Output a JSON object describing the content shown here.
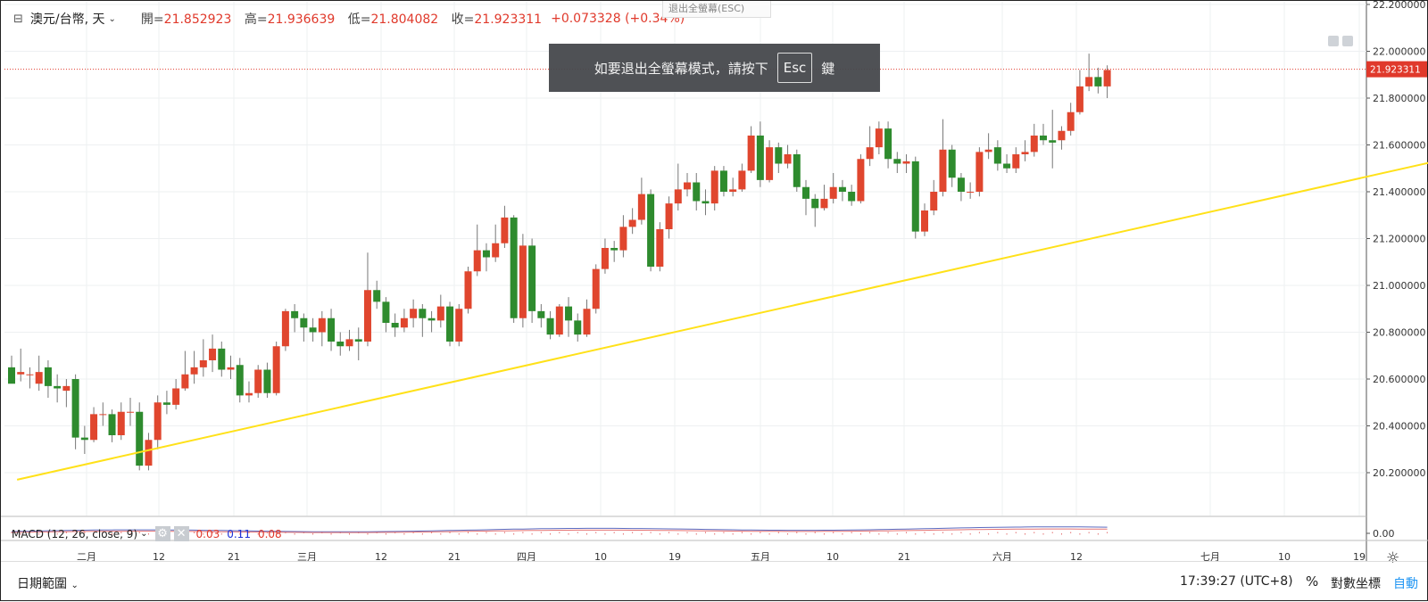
{
  "header": {
    "symbol": "澳元/台幣, 天",
    "open_label": "開=",
    "open": "21.852923",
    "high_label": "高=",
    "high": "21.936639",
    "low_label": "低=",
    "low": "21.804082",
    "close_label": "收=",
    "close": "21.923311",
    "change": "+0.073328 (+0.34%)"
  },
  "exit_fullscreen_label": "退出全螢幕(ESC)",
  "toast": {
    "text_before": "如要退出全螢幕模式，請按下",
    "key": "Esc",
    "text_after": "鍵"
  },
  "macd": {
    "label": "MACD (12, 26, close, 9)",
    "v1": "0.03",
    "v2": "0.11",
    "v3": "0.08",
    "axis_label": "0.00"
  },
  "price_axis": [
    "22.200000",
    "22.000000",
    "21.800000",
    "21.600000",
    "21.400000",
    "21.200000",
    "21.000000",
    "20.800000",
    "20.600000",
    "20.400000",
    "20.200000"
  ],
  "last_price_tag": "21.923311",
  "time_axis": [
    "二月",
    "12",
    "21",
    "三月",
    "12",
    "21",
    "四月",
    "10",
    "19",
    "五月",
    "10",
    "21",
    "六月",
    "12",
    "七月",
    "10",
    "19"
  ],
  "bottom": {
    "date_range": "日期範圍",
    "clock": "17:39:27 (UTC+8)",
    "pct": "%",
    "log": "對數坐標",
    "auto": "自動"
  },
  "colors": {
    "up": "#e0462e",
    "down": "#2e8b2e",
    "trendline": "#ffe119",
    "price_line": "#e0392b",
    "auto": "#2196f3"
  },
  "icons": {
    "collapse": "collapse-icon",
    "chevron": "chevron-down-icon",
    "settings": "settings-icon",
    "close": "close-icon",
    "gear": "gear-icon"
  },
  "chart_data": {
    "type": "candlestick",
    "ylim": [
      20.1,
      22.2
    ],
    "trendline": {
      "from": [
        0.6,
        20.17
      ],
      "to": [
        160.5,
        21.57
      ]
    },
    "candles": [
      [
        20.65,
        20.58,
        20.7,
        20.6
      ],
      [
        20.62,
        20.63,
        20.73,
        20.59
      ],
      [
        20.62,
        20.62,
        20.65,
        20.56
      ],
      [
        20.58,
        20.63,
        20.7,
        20.55
      ],
      [
        20.65,
        20.57,
        20.68,
        20.52
      ],
      [
        20.57,
        20.56,
        20.62,
        20.5
      ],
      [
        20.55,
        20.57,
        20.6,
        20.48
      ],
      [
        20.6,
        20.35,
        20.62,
        20.3
      ],
      [
        20.35,
        20.34,
        20.4,
        20.28
      ],
      [
        20.34,
        20.45,
        20.48,
        20.33
      ],
      [
        20.45,
        20.45,
        20.5,
        20.4
      ],
      [
        20.45,
        20.36,
        20.47,
        20.33
      ],
      [
        20.36,
        20.46,
        20.5,
        20.34
      ],
      [
        20.46,
        20.46,
        20.52,
        20.4
      ],
      [
        20.46,
        20.23,
        20.5,
        20.21
      ],
      [
        20.23,
        20.34,
        20.37,
        20.21
      ],
      [
        20.34,
        20.5,
        20.53,
        20.3
      ],
      [
        20.5,
        20.49,
        20.55,
        20.45
      ],
      [
        20.49,
        20.56,
        20.6,
        20.47
      ],
      [
        20.56,
        20.62,
        20.72,
        20.55
      ],
      [
        20.62,
        20.65,
        20.72,
        20.58
      ],
      [
        20.65,
        20.68,
        20.77,
        20.61
      ],
      [
        20.68,
        20.73,
        20.79,
        20.63
      ],
      [
        20.73,
        20.64,
        20.76,
        20.61
      ],
      [
        20.64,
        20.65,
        20.7,
        20.6
      ],
      [
        20.66,
        20.53,
        20.69,
        20.5
      ],
      [
        20.53,
        20.54,
        20.59,
        20.5
      ],
      [
        20.54,
        20.64,
        20.66,
        20.52
      ],
      [
        20.64,
        20.54,
        20.67,
        20.52
      ],
      [
        20.54,
        20.74,
        20.76,
        20.53
      ],
      [
        20.74,
        20.89,
        20.9,
        20.72
      ],
      [
        20.89,
        20.86,
        20.92,
        20.8
      ],
      [
        20.86,
        20.82,
        20.88,
        20.76
      ],
      [
        20.82,
        20.8,
        20.86,
        20.76
      ],
      [
        20.8,
        20.86,
        20.89,
        20.74
      ],
      [
        20.86,
        20.76,
        20.9,
        20.72
      ],
      [
        20.76,
        20.74,
        20.8,
        20.7
      ],
      [
        20.74,
        20.77,
        20.81,
        20.72
      ],
      [
        20.77,
        20.76,
        20.82,
        20.68
      ],
      [
        20.76,
        20.98,
        21.14,
        20.74
      ],
      [
        20.98,
        20.93,
        21.02,
        20.9
      ],
      [
        20.93,
        20.84,
        20.95,
        20.8
      ],
      [
        20.84,
        20.82,
        20.88,
        20.78
      ],
      [
        20.82,
        20.86,
        20.9,
        20.8
      ],
      [
        20.86,
        20.9,
        20.94,
        20.82
      ],
      [
        20.9,
        20.86,
        20.92,
        20.78
      ],
      [
        20.86,
        20.85,
        20.89,
        20.8
      ],
      [
        20.85,
        20.91,
        20.96,
        20.82
      ],
      [
        20.91,
        20.76,
        20.93,
        20.74
      ],
      [
        20.76,
        20.9,
        20.92,
        20.74
      ],
      [
        20.9,
        21.06,
        21.08,
        20.88
      ],
      [
        21.06,
        21.15,
        21.26,
        21.04
      ],
      [
        21.15,
        21.12,
        21.18,
        21.06
      ],
      [
        21.12,
        21.18,
        21.26,
        21.1
      ],
      [
        21.18,
        21.29,
        21.34,
        21.16
      ],
      [
        21.29,
        20.86,
        21.3,
        20.84
      ],
      [
        20.86,
        21.17,
        21.22,
        20.82
      ],
      [
        21.17,
        20.89,
        21.2,
        20.84
      ],
      [
        20.89,
        20.86,
        20.92,
        20.82
      ],
      [
        20.86,
        20.79,
        20.89,
        20.77
      ],
      [
        20.79,
        20.91,
        20.92,
        20.78
      ],
      [
        20.91,
        20.85,
        20.95,
        20.78
      ],
      [
        20.85,
        20.79,
        20.88,
        20.76
      ],
      [
        20.79,
        20.9,
        20.94,
        20.78
      ],
      [
        20.9,
        21.07,
        21.09,
        20.88
      ],
      [
        21.07,
        21.16,
        21.2,
        21.05
      ],
      [
        21.16,
        21.15,
        21.19,
        21.1
      ],
      [
        21.15,
        21.25,
        21.3,
        21.12
      ],
      [
        21.25,
        21.28,
        21.33,
        21.22
      ],
      [
        21.28,
        21.39,
        21.46,
        21.26
      ],
      [
        21.39,
        21.08,
        21.41,
        21.06
      ],
      [
        21.08,
        21.24,
        21.27,
        21.06
      ],
      [
        21.24,
        21.35,
        21.38,
        21.2
      ],
      [
        21.35,
        21.41,
        21.52,
        21.32
      ],
      [
        21.41,
        21.44,
        21.48,
        21.38
      ],
      [
        21.44,
        21.36,
        21.48,
        21.32
      ],
      [
        21.36,
        21.35,
        21.41,
        21.3
      ],
      [
        21.35,
        21.49,
        21.51,
        21.32
      ],
      [
        21.49,
        21.4,
        21.51,
        21.38
      ],
      [
        21.4,
        21.41,
        21.46,
        21.38
      ],
      [
        21.41,
        21.49,
        21.52,
        21.4
      ],
      [
        21.49,
        21.64,
        21.68,
        21.48
      ],
      [
        21.64,
        21.45,
        21.7,
        21.42
      ],
      [
        21.45,
        21.59,
        21.62,
        21.44
      ],
      [
        21.59,
        21.52,
        21.61,
        21.48
      ],
      [
        21.52,
        21.56,
        21.6,
        21.5
      ],
      [
        21.56,
        21.42,
        21.58,
        21.4
      ],
      [
        21.42,
        21.37,
        21.45,
        21.3
      ],
      [
        21.37,
        21.33,
        21.39,
        21.25
      ],
      [
        21.33,
        21.37,
        21.43,
        21.32
      ],
      [
        21.37,
        21.42,
        21.48,
        21.35
      ],
      [
        21.42,
        21.4,
        21.45,
        21.36
      ],
      [
        21.4,
        21.36,
        21.43,
        21.34
      ],
      [
        21.36,
        21.54,
        21.56,
        21.35
      ],
      [
        21.54,
        21.59,
        21.68,
        21.51
      ],
      [
        21.59,
        21.67,
        21.7,
        21.56
      ],
      [
        21.67,
        21.54,
        21.7,
        21.5
      ],
      [
        21.54,
        21.52,
        21.57,
        21.48
      ],
      [
        21.52,
        21.53,
        21.56,
        21.48
      ],
      [
        21.53,
        21.23,
        21.55,
        21.2
      ],
      [
        21.23,
        21.32,
        21.35,
        21.21
      ],
      [
        21.32,
        21.4,
        21.45,
        21.3
      ],
      [
        21.4,
        21.58,
        21.71,
        21.38
      ],
      [
        21.58,
        21.46,
        21.6,
        21.42
      ],
      [
        21.46,
        21.4,
        21.48,
        21.36
      ],
      [
        21.4,
        21.4,
        21.44,
        21.37
      ],
      [
        21.4,
        21.57,
        21.59,
        21.38
      ],
      [
        21.57,
        21.58,
        21.65,
        21.54
      ],
      [
        21.59,
        21.52,
        21.62,
        21.49
      ],
      [
        21.52,
        21.5,
        21.56,
        21.48
      ],
      [
        21.5,
        21.56,
        21.59,
        21.48
      ],
      [
        21.56,
        21.57,
        21.62,
        21.53
      ],
      [
        21.57,
        21.64,
        21.69,
        21.55
      ],
      [
        21.64,
        21.62,
        21.69,
        21.6
      ],
      [
        21.62,
        21.61,
        21.75,
        21.5
      ],
      [
        21.62,
        21.66,
        21.68,
        21.58
      ],
      [
        21.66,
        21.74,
        21.78,
        21.64
      ],
      [
        21.74,
        21.85,
        21.92,
        21.73
      ],
      [
        21.85,
        21.89,
        21.99,
        21.83
      ],
      [
        21.89,
        21.85,
        21.93,
        21.82
      ],
      [
        21.85,
        21.92,
        21.94,
        21.8
      ]
    ]
  }
}
